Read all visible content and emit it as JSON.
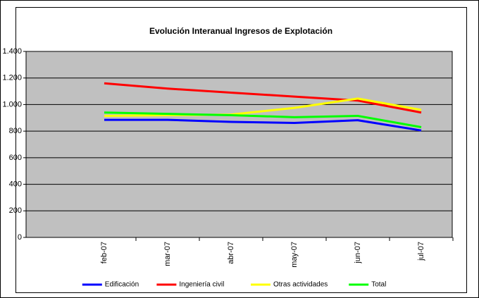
{
  "chart_data": {
    "type": "line",
    "title": "Evolución Interanual Ingresos de Explotación",
    "categories": [
      "feb-07",
      "mar-07",
      "abr-07",
      "may-07",
      "jun-07",
      "jul-07"
    ],
    "series": [
      {
        "name": "Edificación",
        "color": "#0000ff",
        "values": [
          885,
          885,
          870,
          862,
          882,
          805
        ]
      },
      {
        "name": "Ingeniería civil",
        "color": "#ff0000",
        "values": [
          1160,
          1120,
          1090,
          1060,
          1030,
          940
        ]
      },
      {
        "name": "Otras actividades",
        "color": "#ffff00",
        "values": [
          915,
          920,
          925,
          975,
          1045,
          960
        ]
      },
      {
        "name": "Total",
        "color": "#00ff00",
        "values": [
          940,
          930,
          920,
          905,
          915,
          830
        ]
      }
    ],
    "ylim": [
      0,
      1400
    ],
    "yticks": [
      0,
      200,
      400,
      600,
      800,
      {
        "value": 1000,
        "label": "1.000"
      },
      {
        "value": 1200,
        "label": "1.200"
      },
      {
        "value": 1400,
        "label": "1.400"
      }
    ],
    "grid": true,
    "legend": "bottom"
  }
}
